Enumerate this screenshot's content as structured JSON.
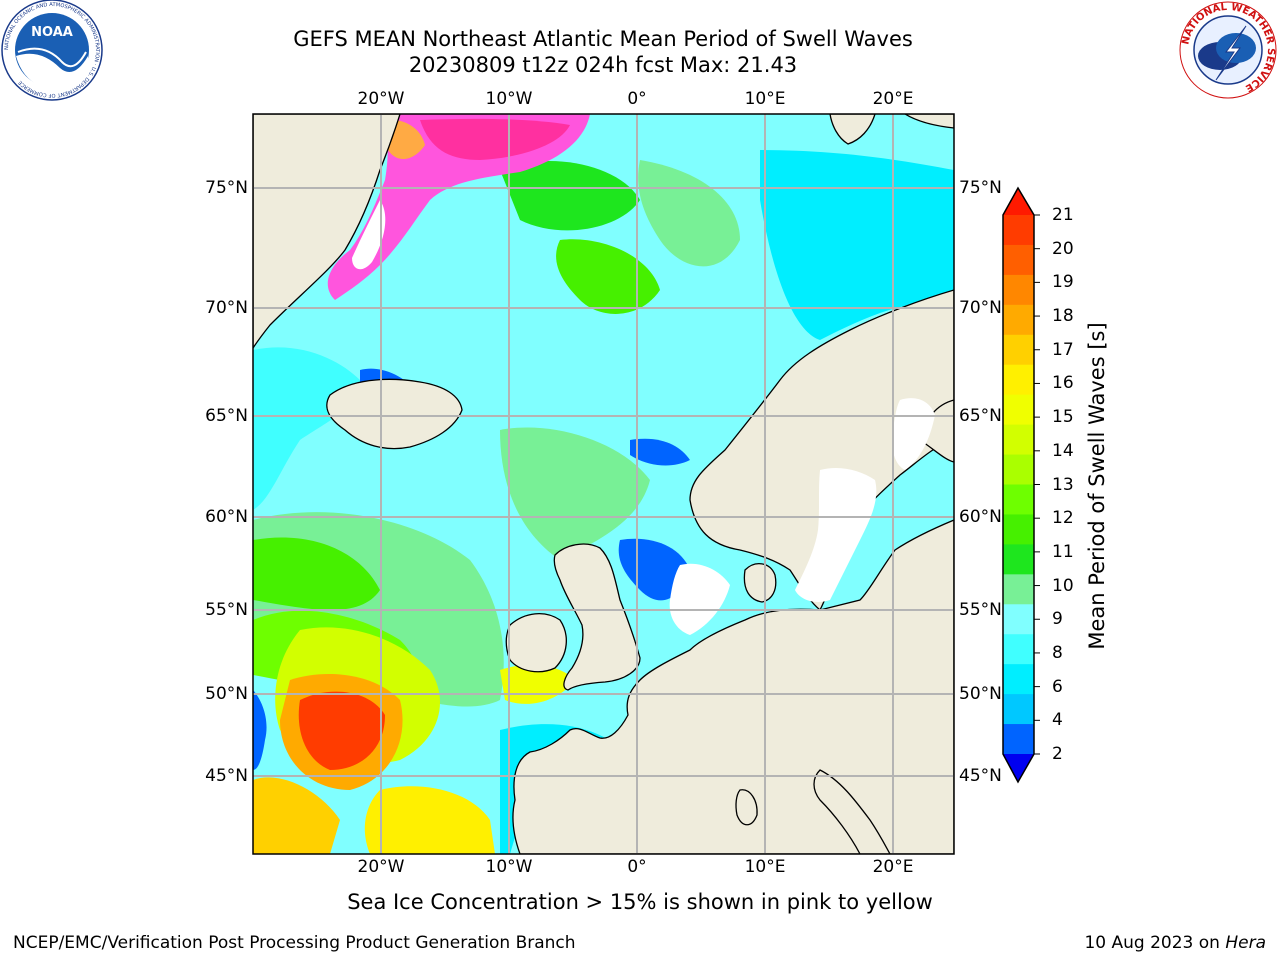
{
  "header": {
    "title_line1": "GEFS MEAN Northeast Atlantic Mean Period of Swell Waves",
    "title_line2": "20230809 t12z 024h fcst   Max: 21.43"
  },
  "logos": {
    "left": {
      "text": "NOAA",
      "ring_text": "NATIONAL OCEANIC AND ATMOSPHERIC ADMINISTRATION · U.S. DEPARTMENT OF COMMERCE"
    },
    "right": {
      "ring_text": "NATIONAL WEATHER SERVICE"
    }
  },
  "map": {
    "lon_labels": [
      "20°W",
      "10°W",
      "0°",
      "10°E",
      "20°E"
    ],
    "lat_labels": [
      "75°N",
      "70°N",
      "65°N",
      "60°N",
      "55°N",
      "50°N",
      "45°N"
    ],
    "land_color": "#efecdc",
    "ocean_base_color": "#80ffff"
  },
  "colorbar": {
    "label": "Mean Period of Swell Waves [s]",
    "ticks": [
      "21",
      "20",
      "19",
      "18",
      "17",
      "16",
      "15",
      "14",
      "13",
      "12",
      "11",
      "10",
      "9",
      "8",
      "6",
      "4",
      "2"
    ],
    "colors_top_to_bottom": [
      "#ff1a00",
      "#ff3c00",
      "#ff5f00",
      "#ff8700",
      "#ffaa00",
      "#ffd000",
      "#fff000",
      "#f0ff00",
      "#d2ff00",
      "#aaff00",
      "#6eff00",
      "#46f000",
      "#1ee61e",
      "#78f096",
      "#80ffff",
      "#40ffff",
      "#00eeff",
      "#00c8ff",
      "#0064ff",
      "#0000f0"
    ]
  },
  "footer": {
    "note": "Sea Ice Concentration > 15% is shown in pink to yellow",
    "credit_left": "NCEP/EMC/Verification Post Processing Product Generation Branch",
    "credit_date": "10 Aug 2023 on",
    "credit_machine": "Hera"
  }
}
